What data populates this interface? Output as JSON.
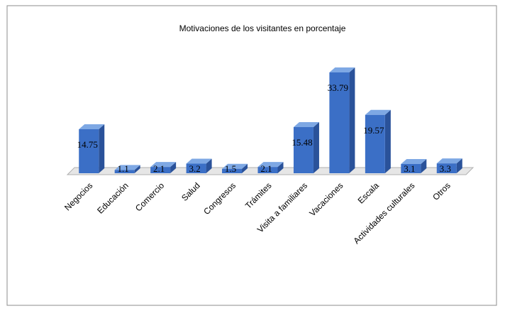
{
  "chart_data": {
    "type": "bar3d",
    "title": "Motivaciones de los visitantes en porcentaje",
    "categories": [
      "Negocios",
      "Educación",
      "Comercio",
      "Salud",
      "Congresos",
      "Trámites",
      "Visita a familiares",
      "Vacaciones",
      "Escala",
      "Actividades culturales",
      "Otros"
    ],
    "values": [
      14.75,
      1.1,
      2.1,
      3.2,
      1.5,
      2.1,
      15.48,
      33.79,
      19.57,
      3.1,
      3.3
    ],
    "color": "#3b6fc6"
  }
}
